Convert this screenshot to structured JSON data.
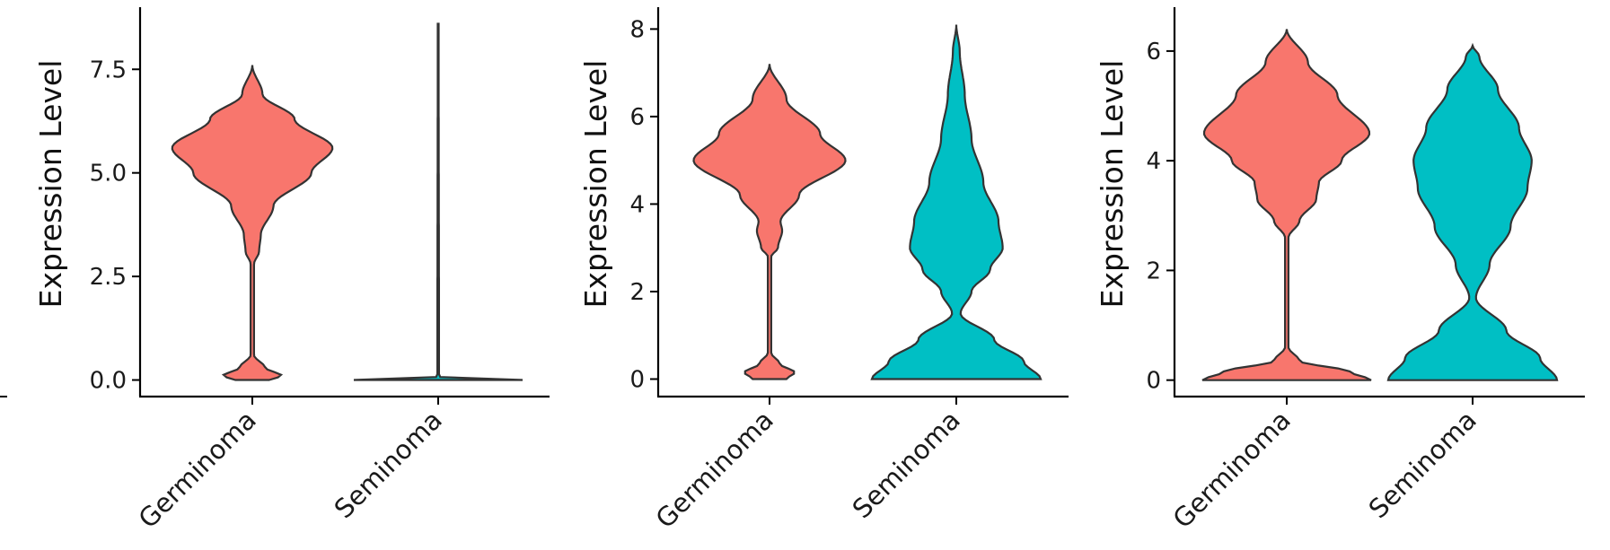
{
  "colors": {
    "Germinoma": "#F8766D",
    "Seminoma": "#00BFC4",
    "outline": "#333333"
  },
  "chart_data": [
    {
      "type": "violin",
      "ylabel": "Expression Level",
      "categories": [
        "Germinoma",
        "Seminoma"
      ],
      "ylim": [
        -0.4,
        9.0
      ],
      "yticks": [
        0.0,
        2.5,
        5.0,
        7.5
      ],
      "ytick_labels": [
        "0.0",
        "2.5",
        "5.0",
        "7.5"
      ],
      "violins": [
        {
          "category": "Germinoma",
          "min": 0,
          "max": 7.6,
          "profile": [
            [
              0,
              0.2
            ],
            [
              0.1,
              0.35
            ],
            [
              0.3,
              0.15
            ],
            [
              0.6,
              0.02
            ],
            [
              2.8,
              0.02
            ],
            [
              3.1,
              0.08
            ],
            [
              3.5,
              0.1
            ],
            [
              4.2,
              0.25
            ],
            [
              5.0,
              0.7
            ],
            [
              5.6,
              0.95
            ],
            [
              6.3,
              0.5
            ],
            [
              6.9,
              0.12
            ],
            [
              7.6,
              0
            ]
          ]
        },
        {
          "category": "Seminoma",
          "min": 0,
          "max": 8.6,
          "profile": [
            [
              0,
              1.0
            ],
            [
              0.03,
              0.2
            ],
            [
              0.08,
              0.01
            ],
            [
              8.6,
              0.005
            ]
          ]
        }
      ]
    },
    {
      "type": "violin",
      "ylabel": "Expression Level",
      "categories": [
        "Germinoma",
        "Seminoma"
      ],
      "ylim": [
        -0.4,
        8.5
      ],
      "yticks": [
        0,
        2,
        4,
        6,
        8
      ],
      "ytick_labels": [
        "0",
        "2",
        "4",
        "6",
        "8"
      ],
      "violins": [
        {
          "category": "Germinoma",
          "min": 0,
          "max": 7.2,
          "profile": [
            [
              0,
              0.2
            ],
            [
              0.15,
              0.3
            ],
            [
              0.35,
              0.12
            ],
            [
              0.6,
              0.02
            ],
            [
              2.8,
              0.02
            ],
            [
              3.0,
              0.1
            ],
            [
              3.4,
              0.15
            ],
            [
              3.6,
              0.13
            ],
            [
              4.2,
              0.35
            ],
            [
              5.0,
              0.9
            ],
            [
              5.6,
              0.6
            ],
            [
              6.4,
              0.2
            ],
            [
              7.2,
              0
            ]
          ]
        },
        {
          "category": "Seminoma",
          "min": 0,
          "max": 8.1,
          "profile": [
            [
              0,
              1.0
            ],
            [
              0.4,
              0.8
            ],
            [
              0.9,
              0.45
            ],
            [
              1.5,
              0.05
            ],
            [
              2.0,
              0.18
            ],
            [
              2.5,
              0.4
            ],
            [
              3.0,
              0.55
            ],
            [
              3.6,
              0.5
            ],
            [
              4.5,
              0.32
            ],
            [
              5.5,
              0.18
            ],
            [
              6.5,
              0.1
            ],
            [
              7.5,
              0.04
            ],
            [
              8.1,
              0
            ]
          ]
        }
      ]
    },
    {
      "type": "violin",
      "ylabel": "Expression Level",
      "categories": [
        "Germinoma",
        "Seminoma"
      ],
      "ylim": [
        -0.3,
        6.8
      ],
      "yticks": [
        0,
        2,
        4,
        6
      ],
      "ytick_labels": [
        "0",
        "2",
        "4",
        "6"
      ],
      "violins": [
        {
          "category": "Germinoma",
          "min": 0,
          "max": 6.4,
          "profile": [
            [
              0,
              1.0
            ],
            [
              0.15,
              0.75
            ],
            [
              0.35,
              0.15
            ],
            [
              0.6,
              0.02
            ],
            [
              2.6,
              0.02
            ],
            [
              2.9,
              0.15
            ],
            [
              3.3,
              0.35
            ],
            [
              3.6,
              0.38
            ],
            [
              4.0,
              0.65
            ],
            [
              4.5,
              0.98
            ],
            [
              5.2,
              0.6
            ],
            [
              5.8,
              0.25
            ],
            [
              6.4,
              0
            ]
          ]
        },
        {
          "category": "Seminoma",
          "min": 0,
          "max": 6.1,
          "profile": [
            [
              0,
              1.0
            ],
            [
              0.4,
              0.8
            ],
            [
              0.9,
              0.4
            ],
            [
              1.5,
              0.04
            ],
            [
              2.1,
              0.2
            ],
            [
              2.8,
              0.45
            ],
            [
              3.5,
              0.65
            ],
            [
              4.0,
              0.7
            ],
            [
              4.6,
              0.55
            ],
            [
              5.3,
              0.3
            ],
            [
              5.9,
              0.08
            ],
            [
              6.1,
              0
            ]
          ]
        }
      ]
    }
  ]
}
